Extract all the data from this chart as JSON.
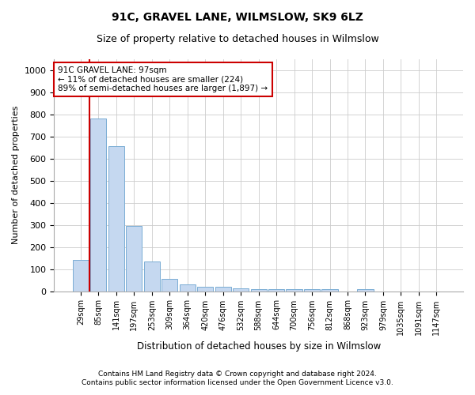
{
  "title": "91C, GRAVEL LANE, WILMSLOW, SK9 6LZ",
  "subtitle": "Size of property relative to detached houses in Wilmslow",
  "xlabel": "Distribution of detached houses by size in Wilmslow",
  "ylabel": "Number of detached properties",
  "footnote1": "Contains HM Land Registry data © Crown copyright and database right 2024.",
  "footnote2": "Contains public sector information licensed under the Open Government Licence v3.0.",
  "bin_labels": [
    "29sqm",
    "85sqm",
    "141sqm",
    "197sqm",
    "253sqm",
    "309sqm",
    "364sqm",
    "420sqm",
    "476sqm",
    "532sqm",
    "588sqm",
    "644sqm",
    "700sqm",
    "756sqm",
    "812sqm",
    "868sqm",
    "923sqm",
    "979sqm",
    "1035sqm",
    "1091sqm",
    "1147sqm"
  ],
  "bar_values": [
    140,
    780,
    655,
    295,
    135,
    55,
    30,
    20,
    20,
    12,
    10,
    10,
    10,
    10,
    10,
    0,
    10,
    0,
    0,
    0,
    0
  ],
  "bar_color": "#c5d8f0",
  "bar_edge_color": "#7aadd4",
  "annotation_text": "91C GRAVEL LANE: 97sqm\n← 11% of detached houses are smaller (224)\n89% of semi-detached houses are larger (1,897) →",
  "annotation_box_color": "#ffffff",
  "annotation_box_edge_color": "#cc0000",
  "vline_color": "#cc0000",
  "ylim": [
    0,
    1050
  ],
  "yticks": [
    0,
    100,
    200,
    300,
    400,
    500,
    600,
    700,
    800,
    900,
    1000
  ],
  "background_color": "#ffffff",
  "grid_color": "#cccccc",
  "title_fontsize": 10,
  "subtitle_fontsize": 9,
  "ylabel_fontsize": 8,
  "xlabel_fontsize": 8.5,
  "tick_fontsize": 8,
  "xtick_fontsize": 7,
  "footnote_fontsize": 6.5,
  "annotation_fontsize": 7.5
}
